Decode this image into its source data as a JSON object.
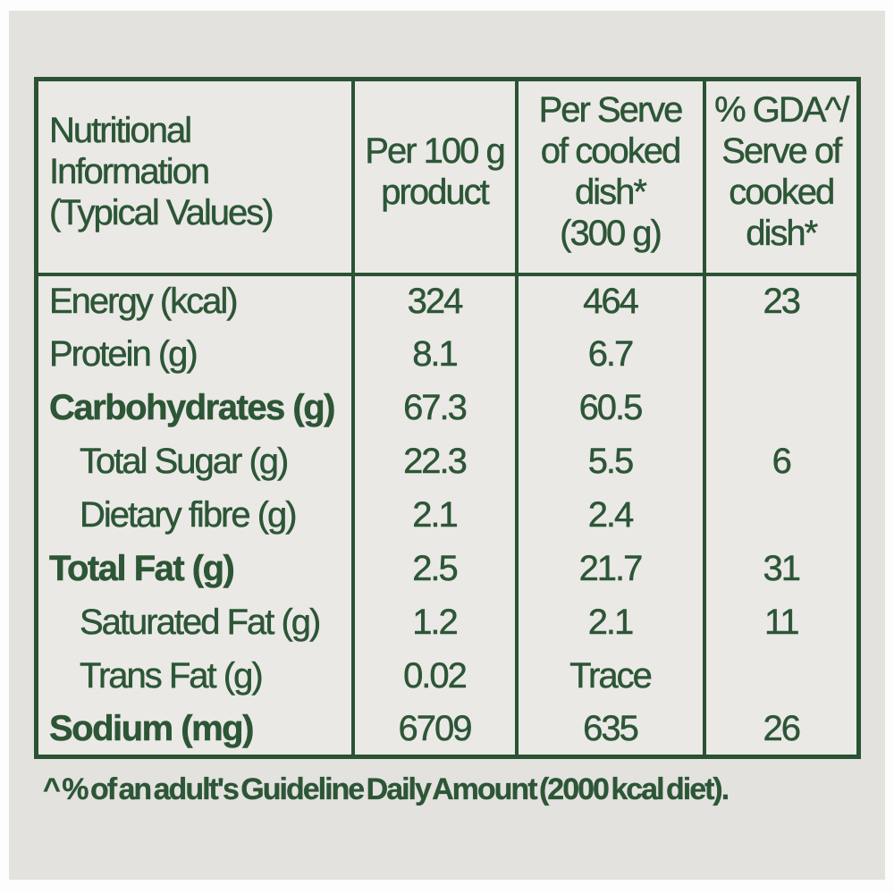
{
  "colors": {
    "text_green": "#2d5637",
    "border_green": "#2b5233",
    "panel_bg": "#e3e2df",
    "table_bg": "#eae9e6",
    "page_bg": "#fdfdfd"
  },
  "table": {
    "headers": [
      {
        "label": "Nutritional\nInformation\n(Typical Values)"
      },
      {
        "label": "Per 100 g\nproduct"
      },
      {
        "label": "Per Serve\nof cooked\ndish*\n(300 g)"
      },
      {
        "label": "% GDA^/\nServe of\ncooked\ndish*"
      }
    ],
    "rows": [
      {
        "label": "Energy (kcal)",
        "per100": "324",
        "perServe": "464",
        "gda": "23"
      },
      {
        "label": "Protein (g)",
        "per100": "8.1",
        "perServe": "6.7",
        "gda": ""
      },
      {
        "label": "Carbohydrates (g)",
        "per100": "67.3",
        "perServe": "60.5",
        "gda": ""
      },
      {
        "label": "Total Sugar (g)",
        "per100": "22.3",
        "perServe": "5.5",
        "gda": "6"
      },
      {
        "label": "Dietary fibre (g)",
        "per100": "2.1",
        "perServe": "2.4",
        "gda": ""
      },
      {
        "label": "Total Fat (g)",
        "per100": "2.5",
        "perServe": "21.7",
        "gda": "31"
      },
      {
        "label": "Saturated Fat (g)",
        "per100": "1.2",
        "perServe": "2.1",
        "gda": "11"
      },
      {
        "label": "Trans Fat (g)",
        "per100": "0.02",
        "perServe": "Trace",
        "gda": ""
      },
      {
        "label": "Sodium (mg)",
        "per100": "6709",
        "perServe": "635",
        "gda": "26"
      }
    ]
  },
  "footnote": "^ % of an adult's Guideline Daily Amount (2000 kcal diet)."
}
